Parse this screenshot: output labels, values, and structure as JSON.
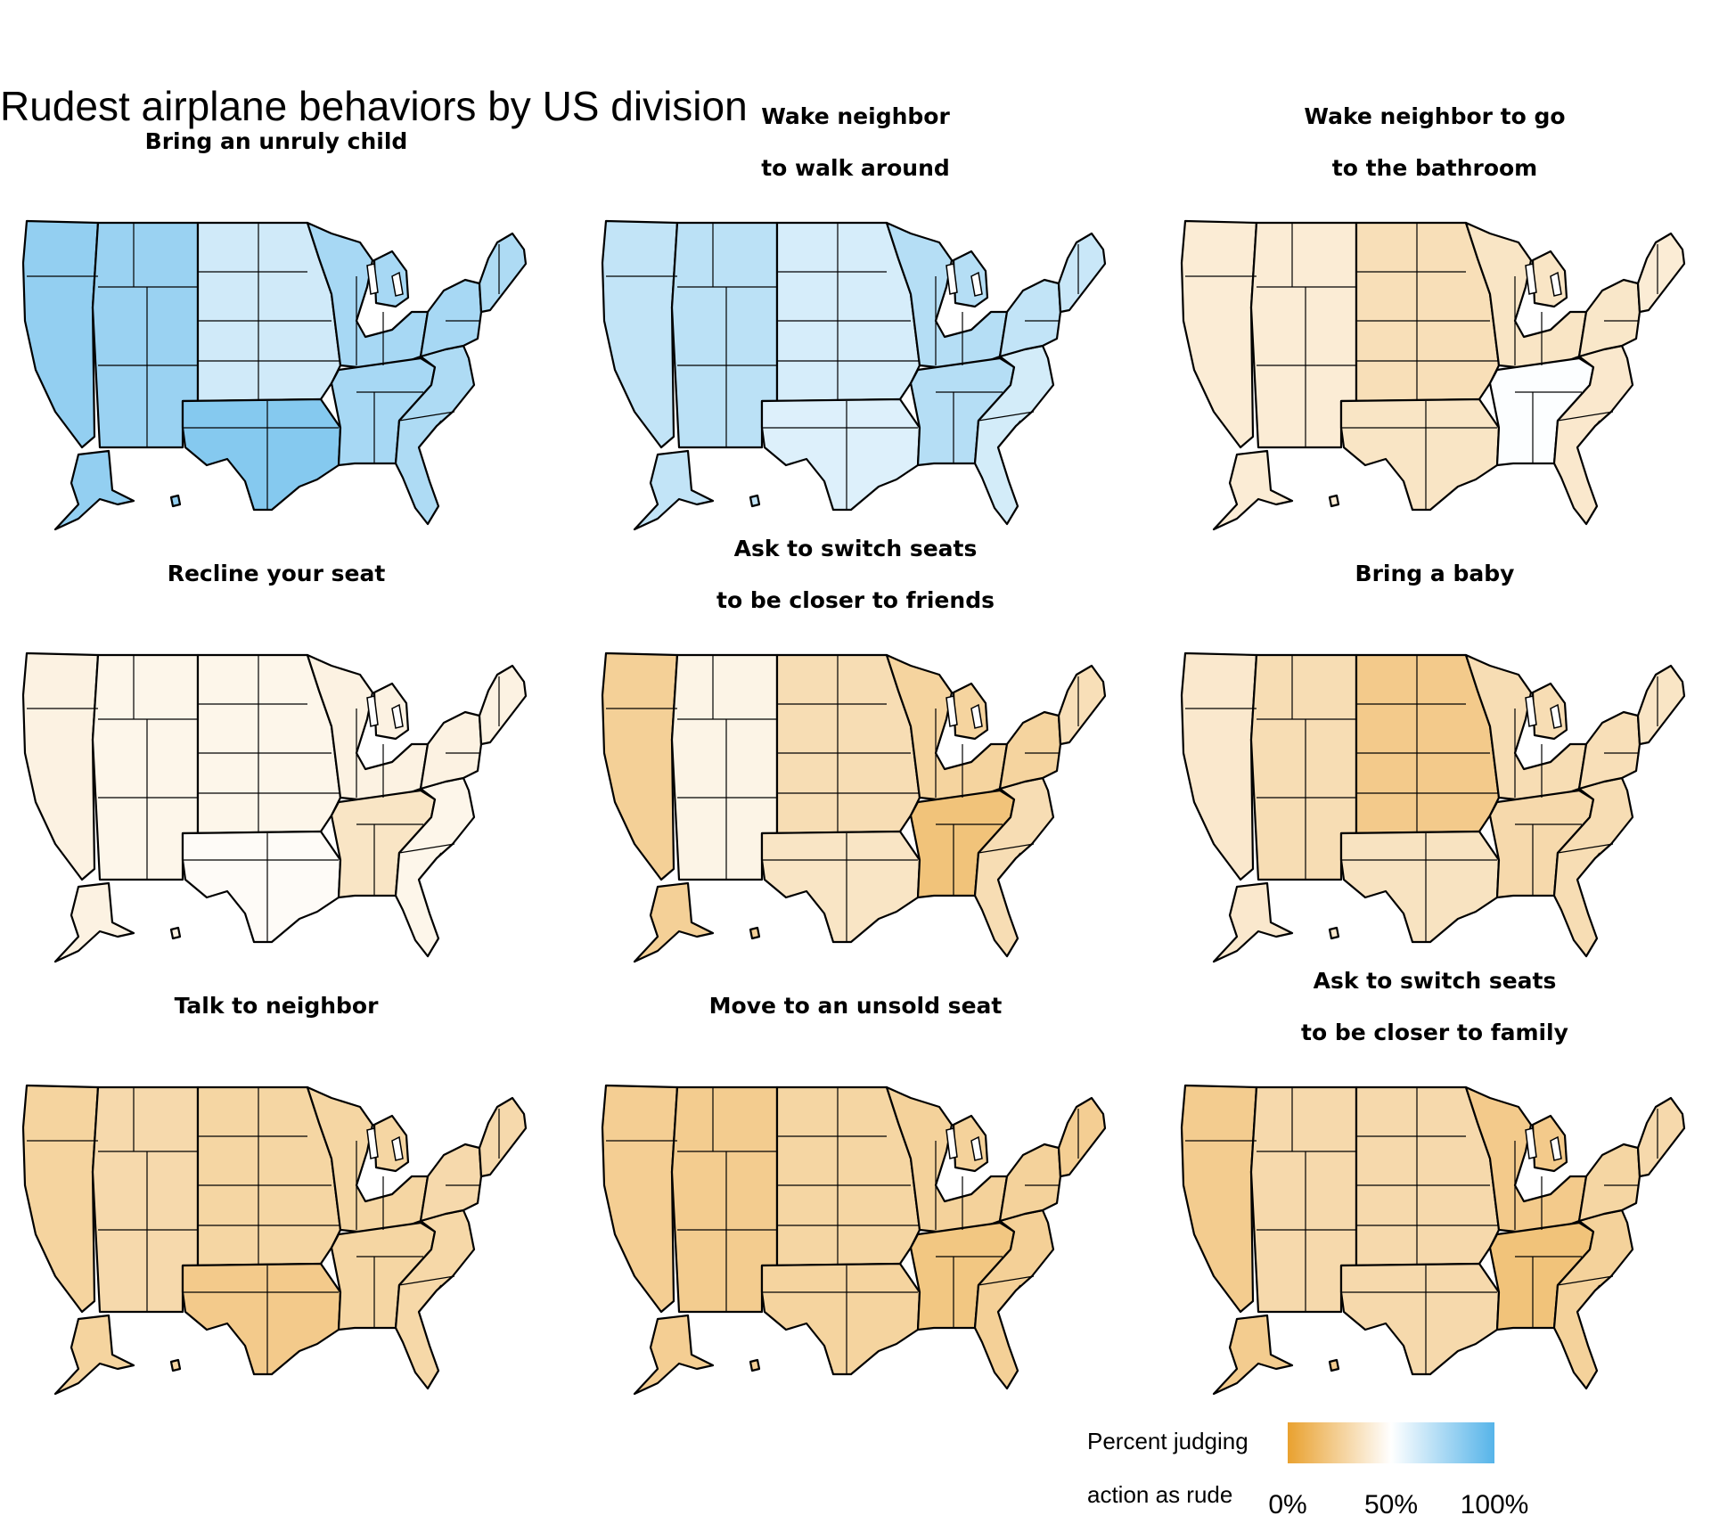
{
  "title": "Rudest airplane behaviors by US division",
  "legend": {
    "label_line1": "Percent judging",
    "label_line2": "action as rude",
    "ticks": [
      "0%",
      "50%",
      "100%"
    ],
    "low_color": "#E9A12F",
    "mid_color": "#FFFFFF",
    "high_color": "#56B4E9"
  },
  "chart_data": {
    "type": "choropleth",
    "regions": [
      "Pacific",
      "Mountain",
      "West North Central",
      "West South Central",
      "East North Central",
      "East South Central",
      "South Atlantic",
      "Middle Atlantic",
      "New England"
    ],
    "panels": [
      {
        "title_lines": [
          "Bring an unruly child"
        ],
        "values": {
          "Pacific": 0.82,
          "Mountain": 0.8,
          "West North Central": 0.64,
          "West South Central": 0.86,
          "East North Central": 0.76,
          "East South Central": 0.76,
          "South Atlantic": 0.74,
          "Middle Atlantic": 0.76,
          "New England": 0.74
        }
      },
      {
        "title_lines": [
          "Wake neighbor",
          "to walk around"
        ],
        "values": {
          "Pacific": 0.68,
          "Mountain": 0.7,
          "West North Central": 0.62,
          "West South Central": 0.6,
          "East North Central": 0.72,
          "East South Central": 0.72,
          "South Atlantic": 0.63,
          "Middle Atlantic": 0.68,
          "New England": 0.66
        }
      },
      {
        "title_lines": [
          "Wake neighbor to go",
          "to the bathroom"
        ],
        "values": {
          "Pacific": 0.4,
          "Mountain": 0.4,
          "West North Central": 0.33,
          "West South Central": 0.36,
          "East North Central": 0.36,
          "East South Central": 0.51,
          "South Atlantic": 0.38,
          "Middle Atlantic": 0.37,
          "New England": 0.4
        }
      },
      {
        "title_lines": [
          "Recline your seat"
        ],
        "values": {
          "Pacific": 0.43,
          "Mountain": 0.45,
          "West North Central": 0.45,
          "West South Central": 0.48,
          "East North Central": 0.43,
          "East South Central": 0.36,
          "South Atlantic": 0.45,
          "Middle Atlantic": 0.43,
          "New England": 0.43
        }
      },
      {
        "title_lines": [
          "Ask to switch seats",
          "to be closer to friends"
        ],
        "values": {
          "Pacific": 0.25,
          "Mountain": 0.44,
          "West North Central": 0.32,
          "West South Central": 0.36,
          "East North Central": 0.27,
          "East South Central": 0.18,
          "South Atlantic": 0.32,
          "Middle Atlantic": 0.27,
          "New England": 0.33
        }
      },
      {
        "title_lines": [
          "Bring a baby"
        ],
        "values": {
          "Pacific": 0.38,
          "Mountain": 0.32,
          "West North Central": 0.22,
          "West South Central": 0.35,
          "East North Central": 0.32,
          "East South Central": 0.3,
          "South Atlantic": 0.32,
          "Middle Atlantic": 0.33,
          "New England": 0.36
        }
      },
      {
        "title_lines": [
          "Talk to neighbor"
        ],
        "values": {
          "Pacific": 0.27,
          "Mountain": 0.3,
          "West North Central": 0.28,
          "West South Central": 0.22,
          "East North Central": 0.28,
          "East South Central": 0.28,
          "South Atlantic": 0.29,
          "Middle Atlantic": 0.3,
          "New England": 0.3
        }
      },
      {
        "title_lines": [
          "Move to an unsold seat"
        ],
        "values": {
          "Pacific": 0.24,
          "Mountain": 0.23,
          "West North Central": 0.28,
          "West South Central": 0.27,
          "East North Central": 0.26,
          "East South Central": 0.2,
          "South Atlantic": 0.25,
          "Middle Atlantic": 0.26,
          "New England": 0.24
        }
      },
      {
        "title_lines": [
          "Ask to switch seats",
          "to be closer to family"
        ],
        "values": {
          "Pacific": 0.23,
          "Mountain": 0.3,
          "West North Central": 0.3,
          "West South Central": 0.3,
          "East North Central": 0.22,
          "East South Central": 0.18,
          "South Atlantic": 0.26,
          "Middle Atlantic": 0.28,
          "New England": 0.3
        }
      }
    ]
  }
}
